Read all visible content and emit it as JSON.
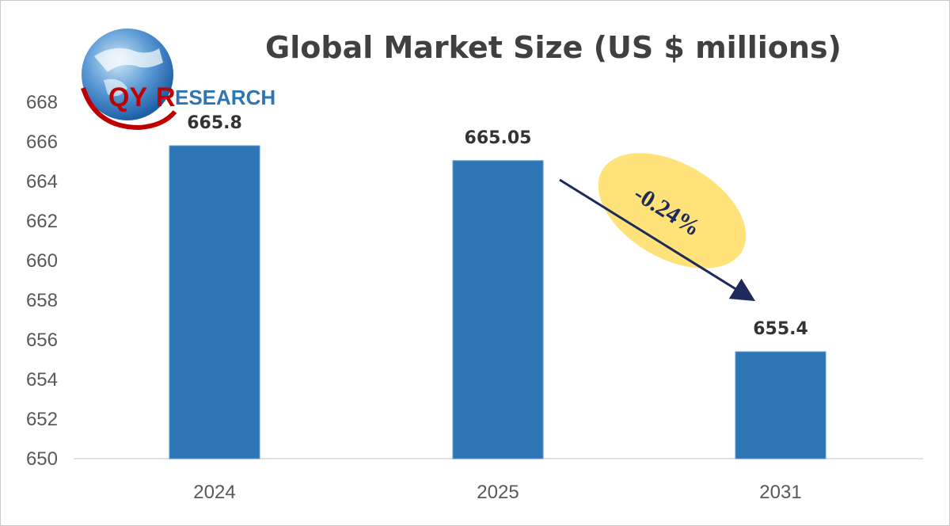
{
  "chart_data": {
    "type": "bar",
    "title": "Global Market Size (US $ millions)",
    "categories": [
      "2024",
      "2025",
      "2031"
    ],
    "values": [
      665.8,
      665.05,
      655.4
    ],
    "value_labels": [
      "665.8",
      "665.05",
      "655.4"
    ],
    "yticks": [
      "650",
      "652",
      "654",
      "656",
      "658",
      "660",
      "662",
      "664",
      "666",
      "668"
    ],
    "ylim": [
      650,
      668
    ],
    "bar_color": "#2e75b6",
    "grid": false,
    "annotation": {
      "text": "-0.24%",
      "from": "2025",
      "to": "2031",
      "arrow_color": "#1f2a5c",
      "bubble_color": "#ffe27a"
    }
  },
  "logo": {
    "text_qy": "QY",
    "text_r": "R",
    "text_rest": "ESEARCH"
  }
}
